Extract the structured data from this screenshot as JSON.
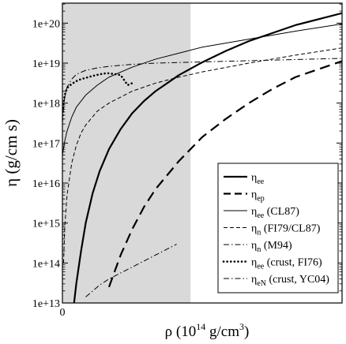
{
  "chart_data": {
    "type": "line",
    "xlabel": {
      "main": "ρ (10",
      "sup1": "14",
      "mid": " g/cm",
      "sup2": "3",
      "end": ")"
    },
    "ylabel": "η (g/cm s)",
    "xlim": [
      0,
      12
    ],
    "ylim_log10": [
      13,
      20.5
    ],
    "yscale": "log",
    "y_ticks": [
      {
        "label": "1e+13",
        "exp": 13
      },
      {
        "label": "1e+14",
        "exp": 14
      },
      {
        "label": "1e+15",
        "exp": 15
      },
      {
        "label": "1e+16",
        "exp": 16
      },
      {
        "label": "1e+17",
        "exp": 17
      },
      {
        "label": "1e+18",
        "exp": 18
      },
      {
        "label": "1e+19",
        "exp": 19
      },
      {
        "label": "1e+20",
        "exp": 20
      }
    ],
    "x_ticks": [
      {
        "label": "0",
        "x": 0
      }
    ],
    "shaded_region": {
      "x": [
        0,
        5.5
      ],
      "color": "#d9d9d9"
    },
    "legend_position": "lower-right",
    "series": [
      {
        "name": "η_ee",
        "legend": {
          "sym": "η",
          "sub": "ee",
          "suffix": ""
        },
        "style": "solid",
        "width": 2.2,
        "x": [
          0.5,
          0.6,
          0.8,
          1.0,
          1.3,
          1.6,
          2.0,
          2.5,
          3.0,
          3.5,
          4.0,
          5.0,
          6.0,
          7.0,
          8.0,
          10.0,
          12.0
        ],
        "logy": [
          13.0,
          13.5,
          14.3,
          15.0,
          15.75,
          16.3,
          16.85,
          17.35,
          17.75,
          18.05,
          18.3,
          18.7,
          19.02,
          19.3,
          19.55,
          19.95,
          20.25
        ]
      },
      {
        "name": "η_ep",
        "legend": {
          "sym": "η",
          "sub": "ep",
          "suffix": ""
        },
        "style": "dashed",
        "width": 2.2,
        "x": [
          2.0,
          2.5,
          3.0,
          3.5,
          4.0,
          5.0,
          6.0,
          7.0,
          8.0,
          9.0,
          10.0,
          11.0,
          12.0
        ],
        "logy": [
          13.4,
          14.2,
          14.85,
          15.4,
          15.85,
          16.55,
          17.15,
          17.6,
          18.0,
          18.35,
          18.65,
          18.85,
          19.05
        ]
      },
      {
        "name": "η_ee (CL87)",
        "legend": {
          "sym": "η",
          "sub": "ee",
          "suffix": " (CL87)"
        },
        "style": "solid",
        "width": 1.0,
        "x": [
          0.0,
          0.1,
          0.2,
          0.4,
          0.6,
          1.0,
          1.5,
          2.0,
          3.0,
          4.0,
          5.0,
          6.0,
          8.0,
          10.0,
          12.0
        ],
        "logy": [
          16.7,
          17.05,
          17.3,
          17.65,
          17.9,
          18.2,
          18.45,
          18.65,
          18.9,
          19.1,
          19.25,
          19.4,
          19.6,
          19.8,
          19.98
        ]
      },
      {
        "name": "η_n (FI79/CL87)",
        "legend": {
          "sym": "η",
          "sub": "n",
          "suffix": " (FI79/CL87)"
        },
        "style": "dashed-thin",
        "width": 1.0,
        "x": [
          0.05,
          0.1,
          0.2,
          0.4,
          0.6,
          0.8,
          1.0,
          1.5,
          2.0,
          3.0,
          4.0,
          5.0,
          6.0,
          8.0,
          10.0,
          12.0
        ],
        "logy": [
          14.0,
          14.9,
          15.7,
          16.5,
          16.95,
          17.25,
          17.45,
          17.8,
          18.0,
          18.3,
          18.5,
          18.65,
          18.78,
          19.0,
          19.2,
          19.38
        ]
      },
      {
        "name": "η_n (M94)",
        "legend": {
          "sym": "η",
          "sub": "n",
          "suffix": " (M94)"
        },
        "style": "dashdot",
        "width": 1.0,
        "x": [
          0.0,
          0.05,
          0.1,
          0.2,
          0.4,
          0.6,
          1.0,
          1.5,
          2.0,
          3.0,
          4.0,
          6.0,
          8.0,
          10.0,
          12.0
        ],
        "logy": [
          17.5,
          17.9,
          18.15,
          18.4,
          18.6,
          18.72,
          18.82,
          18.88,
          18.92,
          18.97,
          19.0,
          19.03,
          19.06,
          19.09,
          19.12
        ]
      },
      {
        "name": "η_ee (crust, FI76)",
        "legend": {
          "sym": "η",
          "sub": "ee",
          "suffix": " (crust, FI76)"
        },
        "style": "dotted",
        "width": 2.6,
        "x": [
          0.0,
          0.05,
          0.1,
          0.2,
          0.4,
          0.6,
          0.8,
          1.0,
          1.3,
          1.6,
          1.9,
          2.2,
          2.5,
          2.8,
          3.0
        ],
        "logy": [
          17.6,
          18.0,
          18.2,
          18.38,
          18.48,
          18.55,
          18.6,
          18.63,
          18.68,
          18.72,
          18.75,
          18.73,
          18.7,
          18.45,
          18.5
        ]
      },
      {
        "name": "η_eN (crust, YC04)",
        "legend": {
          "sym": "η",
          "sub": "eN",
          "suffix": " (crust, YC04)"
        },
        "style": "dashdot",
        "width": 1.0,
        "x": [
          1.0,
          1.3,
          1.6,
          2.0,
          2.5,
          3.0,
          3.5,
          4.0,
          4.5,
          4.9
        ],
        "logy": [
          13.15,
          13.3,
          13.45,
          13.6,
          13.75,
          13.9,
          14.05,
          14.2,
          14.35,
          14.47
        ]
      }
    ]
  }
}
